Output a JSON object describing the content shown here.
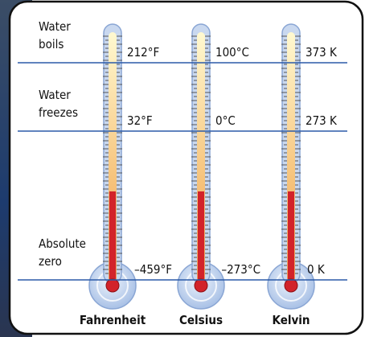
{
  "rows": [
    {
      "lines": [
        "Water",
        "boils"
      ]
    },
    {
      "lines": [
        "Water",
        "freezes"
      ]
    },
    {
      "lines": [
        "Absolute",
        "zero"
      ]
    }
  ],
  "thermometers": [
    {
      "name": "Fahrenheit",
      "readings": [
        "212°F",
        "32°F",
        "–459°F"
      ]
    },
    {
      "name": "Celsius",
      "readings": [
        "100°C",
        "0°C",
        "–273°C"
      ]
    },
    {
      "name": "Kelvin",
      "readings": [
        "373 K",
        "273 K",
        "0 K"
      ]
    }
  ]
}
